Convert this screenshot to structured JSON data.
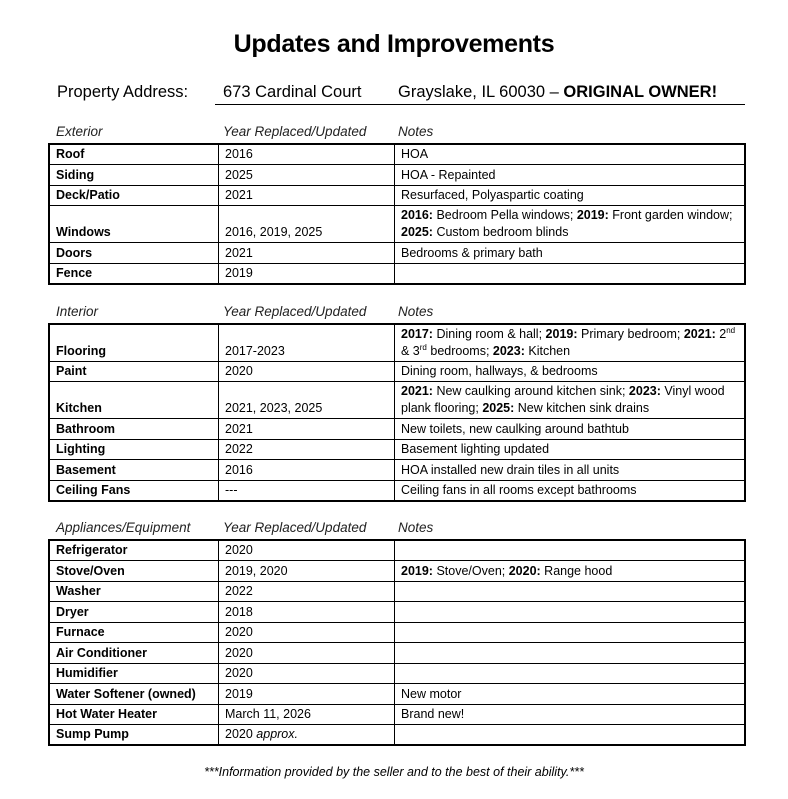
{
  "title": "Updates and Improvements",
  "address": {
    "label": "Property Address:",
    "street": "673 Cardinal Court",
    "city": "Grayslake, IL 60030 – ",
    "emphasis": "ORIGINAL OWNER!"
  },
  "sections": [
    {
      "heading": "Exterior",
      "col_year": "Year Replaced/Updated",
      "col_notes": "Notes",
      "rows": [
        {
          "item": "Roof",
          "year": "2016",
          "notes": [
            {
              "t": "HOA"
            }
          ]
        },
        {
          "item": "Siding",
          "year": "2025",
          "notes": [
            {
              "t": "HOA - Repainted"
            }
          ]
        },
        {
          "item": "Deck/Patio",
          "year": "2021",
          "notes": [
            {
              "t": "Resurfaced, Polyaspartic coating"
            }
          ]
        },
        {
          "item": "Windows",
          "year": "2016, 2019, 2025",
          "tall": true,
          "notes": [
            {
              "t": "2016:",
              "s": "b"
            },
            {
              "t": " Bedroom Pella windows; "
            },
            {
              "t": "2019:",
              "s": "b"
            },
            {
              "t": " Front garden window; "
            },
            {
              "t": "2025:",
              "s": "b"
            },
            {
              "t": " Custom bedroom blinds"
            }
          ]
        },
        {
          "item": "Doors",
          "year": "2021",
          "notes": [
            {
              "t": "Bedrooms & primary bath"
            }
          ]
        },
        {
          "item": "Fence",
          "year": "2019",
          "notes": []
        }
      ]
    },
    {
      "heading": "Interior",
      "col_year": "Year Replaced/Updated",
      "col_notes": "Notes",
      "rows": [
        {
          "item": "Flooring",
          "year": "2017-2023",
          "tall": true,
          "notes": [
            {
              "t": "2017:",
              "s": "b"
            },
            {
              "t": " Dining room & hall; "
            },
            {
              "t": "2019:",
              "s": "b"
            },
            {
              "t": " Primary bedroom; "
            },
            {
              "t": "2021:",
              "s": "b"
            },
            {
              "t": " 2"
            },
            {
              "t": "nd",
              "s": "sup"
            },
            {
              "t": " & 3"
            },
            {
              "t": "rd",
              "s": "sup"
            },
            {
              "t": " bedrooms; "
            },
            {
              "t": "2023:",
              "s": "b"
            },
            {
              "t": " Kitchen"
            }
          ]
        },
        {
          "item": "Paint",
          "year": "2020",
          "notes": [
            {
              "t": "Dining room, hallways, & bedrooms"
            }
          ]
        },
        {
          "item": "Kitchen",
          "year": "2021, 2023, 2025",
          "tall": true,
          "notes": [
            {
              "t": "2021:",
              "s": "b"
            },
            {
              "t": " New caulking around kitchen sink; "
            },
            {
              "t": "2023:",
              "s": "b"
            },
            {
              "t": " Vinyl wood plank flooring; "
            },
            {
              "t": "2025:",
              "s": "b"
            },
            {
              "t": " New kitchen sink drains"
            }
          ]
        },
        {
          "item": "Bathroom",
          "year": "2021",
          "notes": [
            {
              "t": "New toilets, new caulking around bathtub"
            }
          ]
        },
        {
          "item": "Lighting",
          "year": "2022",
          "notes": [
            {
              "t": "Basement lighting updated"
            }
          ]
        },
        {
          "item": "Basement",
          "year": "2016",
          "notes": [
            {
              "t": "HOA installed new drain tiles in all units"
            }
          ]
        },
        {
          "item": "Ceiling Fans",
          "year": "---",
          "notes": [
            {
              "t": "Ceiling fans in all rooms except bathrooms"
            }
          ]
        }
      ]
    },
    {
      "heading": "Appliances/Equipment",
      "col_year": "Year Replaced/Updated",
      "col_notes": "Notes",
      "rows": [
        {
          "item": "Refrigerator",
          "year": "2020",
          "notes": []
        },
        {
          "item": "Stove/Oven",
          "year": "2019, 2020",
          "notes": [
            {
              "t": "2019:",
              "s": "b"
            },
            {
              "t": " Stove/Oven; "
            },
            {
              "t": "2020:",
              "s": "b"
            },
            {
              "t": " Range hood"
            }
          ]
        },
        {
          "item": "Washer",
          "year": "2022",
          "notes": []
        },
        {
          "item": "Dryer",
          "year": "2018",
          "notes": []
        },
        {
          "item": "Furnace",
          "year": "2020",
          "notes": []
        },
        {
          "item": "Air Conditioner",
          "year": "2020",
          "notes": []
        },
        {
          "item": "Humidifier",
          "year": "2020",
          "notes": []
        },
        {
          "item": "Water Softener (owned)",
          "year": "2019",
          "notes": [
            {
              "t": "New motor"
            }
          ]
        },
        {
          "item": "Hot Water Heater",
          "year": "March 11, 2026",
          "notes": [
            {
              "t": "Brand new!"
            }
          ]
        },
        {
          "item": "Sump Pump",
          "year": "2020",
          "year_suffix": " approx.",
          "notes": []
        }
      ]
    }
  ],
  "footer": "***Information provided by the seller and to the best of their ability.***"
}
